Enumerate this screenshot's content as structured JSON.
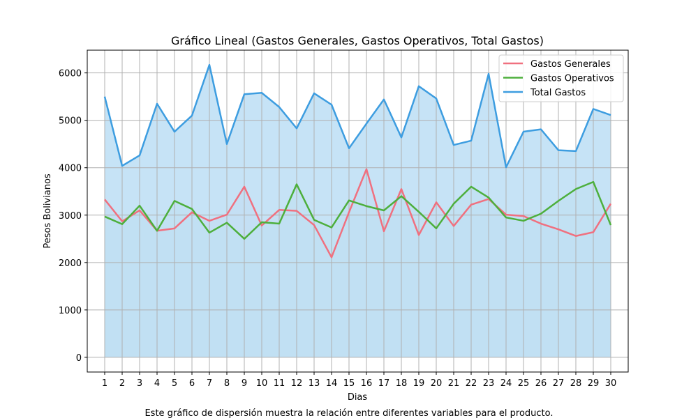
{
  "chart_data": {
    "type": "area",
    "title": "Gráfico Lineal (Gastos Generales, Gastos Operativos, Total Gastos)",
    "xlabel": "Dias",
    "ylabel": "Pesos Bolivianos",
    "caption": "Este gráfico de dispersión muestra la relación entre diferentes variables para el producto.",
    "x": [
      1,
      2,
      3,
      4,
      5,
      6,
      7,
      8,
      9,
      10,
      11,
      12,
      13,
      14,
      15,
      16,
      17,
      18,
      19,
      20,
      21,
      22,
      23,
      24,
      25,
      26,
      27,
      28,
      29,
      30
    ],
    "ylim": [
      -310,
      6480
    ],
    "xlim": [
      0,
      31
    ],
    "yticks": [
      0,
      1000,
      2000,
      3000,
      4000,
      5000,
      6000
    ],
    "grid": true,
    "legend_position": "top-right",
    "series": [
      {
        "name": "Gastos Generales",
        "color": "#f0707f",
        "fill": "#c5a6d3",
        "values": [
          3330,
          2870,
          3100,
          2670,
          2720,
          3060,
          2880,
          3010,
          3600,
          2780,
          3110,
          3090,
          2790,
          2110,
          3060,
          3970,
          2660,
          3550,
          2580,
          3270,
          2770,
          3220,
          3340,
          3010,
          2980,
          2820,
          2700,
          2560,
          2640,
          3240
        ]
      },
      {
        "name": "Gastos Operativos",
        "color": "#4daf3c",
        "fill": "#9bc7b0",
        "values": [
          2970,
          2810,
          3200,
          2670,
          3300,
          3130,
          2630,
          2840,
          2500,
          2850,
          2820,
          3650,
          2900,
          2740,
          3310,
          3190,
          3100,
          3400,
          3070,
          2720,
          3240,
          3600,
          3370,
          2950,
          2880,
          3030,
          3300,
          3550,
          3700,
          2790
        ]
      },
      {
        "name": "Total Gastos",
        "color": "#3d9de0",
        "fill": "#c3e2f6",
        "values": [
          5500,
          4040,
          4260,
          5350,
          4760,
          5100,
          6170,
          4500,
          5550,
          5580,
          5280,
          4830,
          5570,
          5330,
          4410,
          4930,
          5440,
          4640,
          5720,
          5460,
          4480,
          4570,
          5980,
          4010,
          4760,
          4810,
          4370,
          4350,
          5240,
          5110
        ]
      }
    ]
  }
}
